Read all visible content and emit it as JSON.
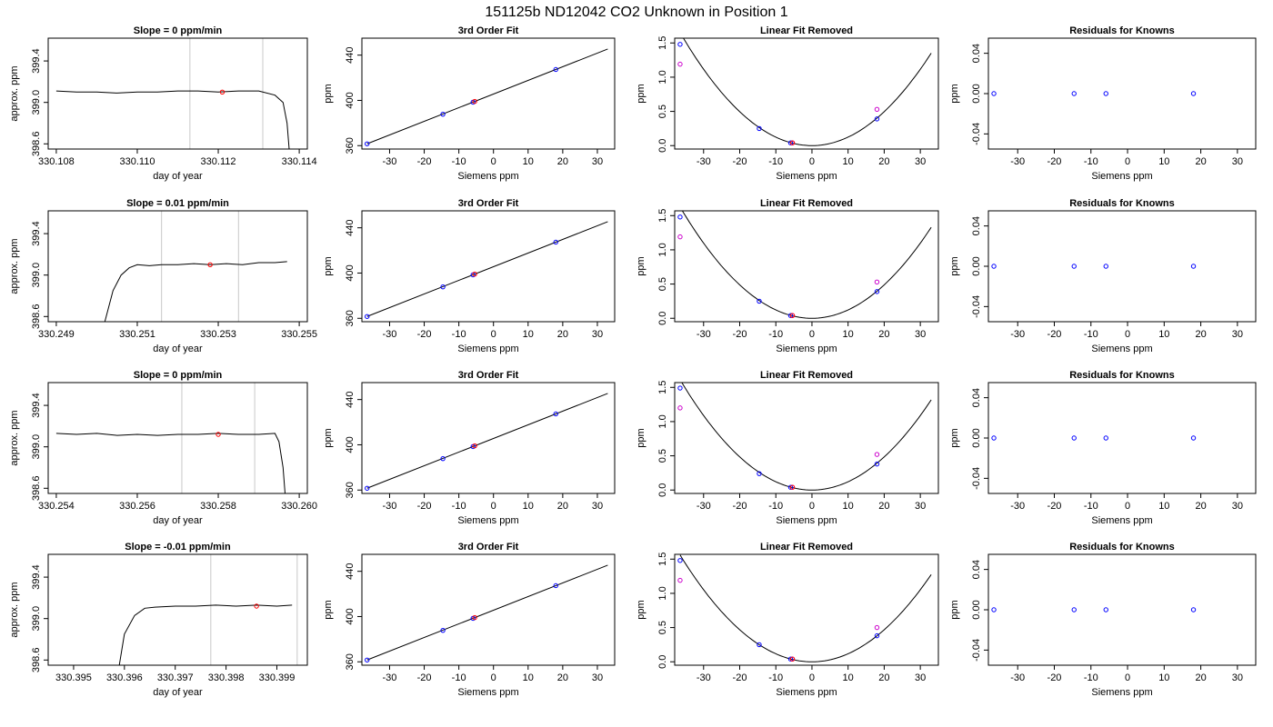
{
  "figure": {
    "title": "151125b     ND12042    CO2 Unknown in Position  1"
  },
  "colors": {
    "axis": "#000000",
    "trace": "#000000",
    "reference_line": "#c8c8c8",
    "known_point": "#0000ff",
    "unknown_point": "#ff0000",
    "raw_point": "#cc00cc"
  },
  "chart_data": [
    {
      "type": "line",
      "title": "Slope =  0  ppm/min",
      "xlabel": "day of year",
      "ylabel": "approx. ppm",
      "xlim": [
        330.1078,
        330.1142
      ],
      "ylim": [
        398.55,
        399.62
      ],
      "xticks": [
        330.108,
        330.11,
        330.112,
        330.114
      ],
      "yticks": [
        398.6,
        399.0,
        399.4
      ],
      "reference_lines_x": [
        330.1113,
        330.1131
      ],
      "series": [
        {
          "x": [
            330.108,
            330.1085,
            330.109,
            330.1095,
            330.11,
            330.1105,
            330.111,
            330.1115,
            330.112,
            330.1125,
            330.113,
            330.1134,
            330.1136,
            330.1137,
            330.11375
          ],
          "y": [
            399.11,
            399.1,
            399.1,
            399.09,
            399.1,
            399.1,
            399.11,
            399.11,
            399.1,
            399.11,
            399.11,
            399.07,
            399.0,
            398.8,
            398.55
          ]
        }
      ],
      "unknown_point": {
        "x": 330.1121,
        "y": 399.1
      }
    },
    {
      "type": "scatter",
      "title": "3rd Order Fit",
      "xlabel": "Siemens ppm",
      "ylabel": "ppm",
      "xlim": [
        -38,
        35
      ],
      "ylim": [
        357,
        455
      ],
      "xticks": [
        -30,
        -20,
        -10,
        0,
        10,
        20,
        30
      ],
      "yticks": [
        360,
        400,
        440
      ],
      "known_points": {
        "x": [
          -36.5,
          -14.6,
          -5.9,
          18.0
        ],
        "y": [
          361.6,
          387.8,
          398.4,
          427.3
        ]
      },
      "unknown_point": {
        "x": -5.4,
        "y": 399.1
      },
      "fit_line": {
        "x": [
          -36.5,
          33.0
        ],
        "y": [
          361.6,
          445.4
        ]
      }
    },
    {
      "type": "scatter",
      "title": "Linear Fit Removed",
      "xlabel": "Siemens ppm",
      "ylabel": "ppm",
      "xlim": [
        -38,
        35
      ],
      "ylim": [
        -0.05,
        1.57
      ],
      "xticks": [
        -30,
        -20,
        -10,
        0,
        10,
        20,
        30
      ],
      "yticks": [
        0.0,
        0.5,
        1.0,
        1.5
      ],
      "known_points": {
        "x": [
          -36.5,
          -14.6,
          -5.9,
          18.0
        ],
        "y": [
          1.48,
          0.25,
          0.04,
          0.39
        ]
      },
      "raw_points": {
        "x": [
          -36.5,
          -5.4,
          18.0
        ],
        "y": [
          1.19,
          0.04,
          0.53
        ]
      },
      "unknown_point": {
        "x": -5.4,
        "y": 0.04
      },
      "fit_curve": {
        "a": 0.00124,
        "b": 0.0,
        "c": 0.0,
        "x_range": [
          -36.5,
          33.0
        ]
      }
    },
    {
      "type": "scatter",
      "title": "Residuals for Knowns",
      "xlabel": "Siemens ppm",
      "ylabel": "ppm",
      "xlim": [
        -38,
        35
      ],
      "ylim": [
        -0.055,
        0.055
      ],
      "xticks": [
        -30,
        -20,
        -10,
        0,
        10,
        20,
        30
      ],
      "yticks": [
        -0.04,
        0.0,
        0.04
      ],
      "known_points": {
        "x": [
          -36.5,
          -14.6,
          -5.9,
          18.0
        ],
        "y": [
          0,
          0,
          0,
          0
        ]
      }
    },
    {
      "type": "line",
      "title": "Slope =  0.01  ppm/min",
      "xlabel": "day of year",
      "ylabel": "approx. ppm",
      "xlim": [
        330.2488,
        330.2552
      ],
      "ylim": [
        398.55,
        399.62
      ],
      "xticks": [
        330.249,
        330.251,
        330.253,
        330.255
      ],
      "yticks": [
        398.6,
        399.0,
        399.4
      ],
      "reference_lines_x": [
        330.2516,
        330.2535
      ],
      "series": [
        {
          "x": [
            330.2502,
            330.2504,
            330.2506,
            330.2508,
            330.251,
            330.2513,
            330.2516,
            330.252,
            330.2524,
            330.2528,
            330.2532,
            330.2536,
            330.254,
            330.2544,
            330.2547
          ],
          "y": [
            398.55,
            398.85,
            399.0,
            399.07,
            399.1,
            399.09,
            399.1,
            399.1,
            399.11,
            399.1,
            399.11,
            399.1,
            399.12,
            399.12,
            399.13
          ]
        }
      ],
      "unknown_point": {
        "x": 330.2528,
        "y": 399.1
      }
    },
    {
      "type": "scatter",
      "title": "3rd Order Fit",
      "xlabel": "Siemens ppm",
      "ylabel": "ppm",
      "xlim": [
        -38,
        35
      ],
      "ylim": [
        357,
        455
      ],
      "xticks": [
        -30,
        -20,
        -10,
        0,
        10,
        20,
        30
      ],
      "yticks": [
        360,
        400,
        440
      ],
      "known_points": {
        "x": [
          -36.5,
          -14.6,
          -5.9,
          18.0
        ],
        "y": [
          361.6,
          387.8,
          398.4,
          427.3
        ]
      },
      "unknown_point": {
        "x": -5.4,
        "y": 399.1
      },
      "fit_line": {
        "x": [
          -36.5,
          33.0
        ],
        "y": [
          361.6,
          445.4
        ]
      }
    },
    {
      "type": "scatter",
      "title": "Linear Fit Removed",
      "xlabel": "Siemens ppm",
      "ylabel": "ppm",
      "xlim": [
        -38,
        35
      ],
      "ylim": [
        -0.05,
        1.57
      ],
      "xticks": [
        -30,
        -20,
        -10,
        0,
        10,
        20,
        30
      ],
      "yticks": [
        0.0,
        0.5,
        1.0,
        1.5
      ],
      "known_points": {
        "x": [
          -36.5,
          -14.6,
          -5.9,
          18.0
        ],
        "y": [
          1.48,
          0.25,
          0.04,
          0.39
        ]
      },
      "raw_points": {
        "x": [
          -36.5,
          -5.4,
          18.0
        ],
        "y": [
          1.19,
          0.04,
          0.53
        ]
      },
      "unknown_point": {
        "x": -5.4,
        "y": 0.04
      },
      "fit_curve": {
        "a": 0.00122,
        "b": 0.0,
        "c": 0.0,
        "x_range": [
          -36.5,
          33.0
        ]
      }
    },
    {
      "type": "scatter",
      "title": "Residuals for Knowns",
      "xlabel": "Siemens ppm",
      "ylabel": "ppm",
      "xlim": [
        -38,
        35
      ],
      "ylim": [
        -0.055,
        0.055
      ],
      "xticks": [
        -30,
        -20,
        -10,
        0,
        10,
        20,
        30
      ],
      "yticks": [
        -0.04,
        0.0,
        0.04
      ],
      "known_points": {
        "x": [
          -36.5,
          -14.6,
          -5.9,
          18.0
        ],
        "y": [
          0,
          0,
          0,
          0
        ]
      }
    },
    {
      "type": "line",
      "title": "Slope =  0  ppm/min",
      "xlabel": "day of year",
      "ylabel": "approx. ppm",
      "xlim": [
        330.2538,
        330.2602
      ],
      "ylim": [
        398.55,
        399.62
      ],
      "xticks": [
        330.254,
        330.256,
        330.258,
        330.26
      ],
      "yticks": [
        398.6,
        399.0,
        399.4
      ],
      "reference_lines_x": [
        330.2571,
        330.2589
      ],
      "series": [
        {
          "x": [
            330.254,
            330.2545,
            330.255,
            330.2555,
            330.256,
            330.2565,
            330.257,
            330.2575,
            330.258,
            330.2585,
            330.259,
            330.2594,
            330.2595,
            330.2596,
            330.25965
          ],
          "y": [
            399.13,
            399.12,
            399.13,
            399.11,
            399.12,
            399.11,
            399.12,
            399.12,
            399.13,
            399.12,
            399.12,
            399.13,
            399.05,
            398.8,
            398.55
          ]
        }
      ],
      "unknown_point": {
        "x": 330.258,
        "y": 399.12
      }
    },
    {
      "type": "scatter",
      "title": "3rd Order Fit",
      "xlabel": "Siemens ppm",
      "ylabel": "ppm",
      "xlim": [
        -38,
        35
      ],
      "ylim": [
        357,
        455
      ],
      "xticks": [
        -30,
        -20,
        -10,
        0,
        10,
        20,
        30
      ],
      "yticks": [
        360,
        400,
        440
      ],
      "known_points": {
        "x": [
          -36.5,
          -14.6,
          -5.9,
          18.0
        ],
        "y": [
          361.6,
          387.8,
          398.4,
          427.3
        ]
      },
      "unknown_point": {
        "x": -5.4,
        "y": 399.1
      },
      "fit_line": {
        "x": [
          -36.5,
          33.0
        ],
        "y": [
          361.6,
          445.4
        ]
      }
    },
    {
      "type": "scatter",
      "title": "Linear Fit Removed",
      "xlabel": "Siemens ppm",
      "ylabel": "ppm",
      "xlim": [
        -38,
        35
      ],
      "ylim": [
        -0.05,
        1.57
      ],
      "xticks": [
        -30,
        -20,
        -10,
        0,
        10,
        20,
        30
      ],
      "yticks": [
        0.0,
        0.5,
        1.0,
        1.5
      ],
      "known_points": {
        "x": [
          -36.5,
          -14.6,
          -5.9,
          18.0
        ],
        "y": [
          1.49,
          0.24,
          0.04,
          0.38
        ]
      },
      "raw_points": {
        "x": [
          -36.5,
          -5.4,
          18.0
        ],
        "y": [
          1.2,
          0.04,
          0.52
        ]
      },
      "unknown_point": {
        "x": -5.4,
        "y": 0.04
      },
      "fit_curve": {
        "a": 0.00121,
        "b": 0.0,
        "c": 0.0,
        "x_range": [
          -36.5,
          33.0
        ]
      }
    },
    {
      "type": "scatter",
      "title": "Residuals for Knowns",
      "xlabel": "Siemens ppm",
      "ylabel": "ppm",
      "xlim": [
        -38,
        35
      ],
      "ylim": [
        -0.055,
        0.055
      ],
      "xticks": [
        -30,
        -20,
        -10,
        0,
        10,
        20,
        30
      ],
      "yticks": [
        -0.04,
        0.0,
        0.04
      ],
      "known_points": {
        "x": [
          -36.5,
          -14.6,
          -5.9,
          18.0
        ],
        "y": [
          0,
          0,
          0,
          0
        ]
      }
    },
    {
      "type": "line",
      "title": "Slope =  -0.01  ppm/min",
      "xlabel": "day of year",
      "ylabel": "approx. ppm",
      "xlim": [
        330.3945,
        330.3996
      ],
      "ylim": [
        398.55,
        399.62
      ],
      "xticks": [
        330.395,
        330.396,
        330.397,
        330.398,
        330.399
      ],
      "yticks": [
        398.6,
        399.0,
        399.4
      ],
      "reference_lines_x": [
        330.3977,
        330.3994
      ],
      "series": [
        {
          "x": [
            330.3959,
            330.396,
            330.3962,
            330.3964,
            330.3966,
            330.397,
            330.3974,
            330.3978,
            330.3982,
            330.3986,
            330.399,
            330.3993
          ],
          "y": [
            398.55,
            398.85,
            399.03,
            399.1,
            399.11,
            399.12,
            399.12,
            399.13,
            399.12,
            399.13,
            399.12,
            399.13
          ]
        }
      ],
      "unknown_point": {
        "x": 330.3986,
        "y": 399.12
      }
    },
    {
      "type": "scatter",
      "title": "3rd Order Fit",
      "xlabel": "Siemens ppm",
      "ylabel": "ppm",
      "xlim": [
        -38,
        35
      ],
      "ylim": [
        357,
        455
      ],
      "xticks": [
        -30,
        -20,
        -10,
        0,
        10,
        20,
        30
      ],
      "yticks": [
        360,
        400,
        440
      ],
      "known_points": {
        "x": [
          -36.5,
          -14.6,
          -5.9,
          18.0
        ],
        "y": [
          361.6,
          387.8,
          398.4,
          427.3
        ]
      },
      "unknown_point": {
        "x": -5.4,
        "y": 399.1
      },
      "fit_line": {
        "x": [
          -36.5,
          33.0
        ],
        "y": [
          361.6,
          445.4
        ]
      }
    },
    {
      "type": "scatter",
      "title": "Linear Fit Removed",
      "xlabel": "Siemens ppm",
      "ylabel": "ppm",
      "xlim": [
        -38,
        35
      ],
      "ylim": [
        -0.05,
        1.57
      ],
      "xticks": [
        -30,
        -20,
        -10,
        0,
        10,
        20,
        30
      ],
      "yticks": [
        0.0,
        0.5,
        1.0,
        1.5
      ],
      "known_points": {
        "x": [
          -36.5,
          -14.6,
          -5.9,
          18.0
        ],
        "y": [
          1.48,
          0.25,
          0.04,
          0.38
        ]
      },
      "raw_points": {
        "x": [
          -36.5,
          -5.4,
          18.0
        ],
        "y": [
          1.19,
          0.04,
          0.5
        ]
      },
      "unknown_point": {
        "x": -5.4,
        "y": 0.04
      },
      "fit_curve": {
        "a": 0.00117,
        "b": 0.0,
        "c": 0.0,
        "x_range": [
          -36.5,
          33.0
        ]
      }
    },
    {
      "type": "scatter",
      "title": "Residuals for Knowns",
      "xlabel": "Siemens ppm",
      "ylabel": "ppm",
      "xlim": [
        -38,
        35
      ],
      "ylim": [
        -0.055,
        0.055
      ],
      "xticks": [
        -30,
        -20,
        -10,
        0,
        10,
        20,
        30
      ],
      "yticks": [
        -0.04,
        0.0,
        0.04
      ],
      "known_points": {
        "x": [
          -36.5,
          -14.6,
          -5.9,
          18.0
        ],
        "y": [
          0,
          0,
          0,
          0
        ]
      }
    }
  ]
}
